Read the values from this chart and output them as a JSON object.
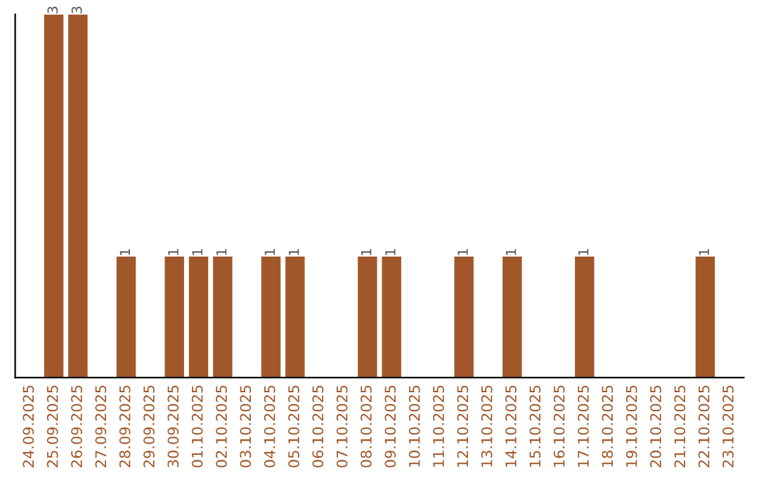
{
  "chart_data": {
    "type": "bar",
    "categories": [
      "24.09.2025",
      "25.09.2025",
      "26.09.2025",
      "27.09.2025",
      "28.09.2025",
      "29.09.2025",
      "30.09.2025",
      "01.10.2025",
      "02.10.2025",
      "03.10.2025",
      "04.10.2025",
      "05.10.2025",
      "06.10.2025",
      "07.10.2025",
      "08.10.2025",
      "09.10.2025",
      "10.10.2025",
      "11.10.2025",
      "12.10.2025",
      "13.10.2025",
      "14.10.2025",
      "15.10.2025",
      "16.10.2025",
      "17.10.2025",
      "18.10.2025",
      "19.10.2025",
      "20.10.2025",
      "21.10.2025",
      "22.10.2025",
      "23.10.2025"
    ],
    "values": [
      0,
      3,
      3,
      0,
      1,
      0,
      1,
      1,
      1,
      0,
      1,
      1,
      0,
      0,
      1,
      1,
      0,
      0,
      1,
      0,
      1,
      0,
      0,
      1,
      0,
      0,
      0,
      0,
      1,
      0
    ],
    "value_labels": [
      null,
      "3",
      "3",
      null,
      "1",
      null,
      "1",
      "1",
      "1",
      null,
      "1",
      "1",
      null,
      null,
      "1",
      "1",
      null,
      null,
      "1",
      null,
      "1",
      null,
      null,
      "1",
      null,
      null,
      null,
      null,
      "1",
      null
    ],
    "color": "#a0582a",
    "ylim": [
      0,
      3
    ],
    "tick_labels": "x",
    "grid": false
  }
}
